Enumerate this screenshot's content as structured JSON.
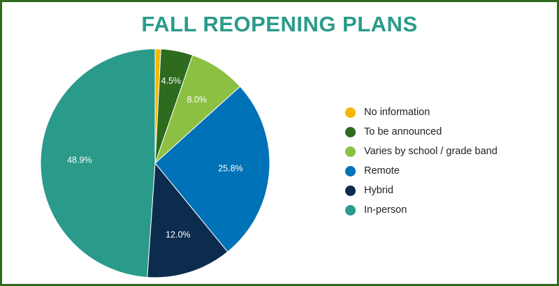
{
  "chart_data": {
    "type": "pie",
    "title": "FALL REOPENING PLANS",
    "slices": [
      {
        "label": "No information",
        "value": 0.8,
        "display": "",
        "color": "#f5b800"
      },
      {
        "label": "To be announced",
        "value": 4.5,
        "display": "4.5%",
        "color": "#2e6b1f"
      },
      {
        "label": "Varies by school / grade band",
        "value": 8.0,
        "display": "8.0%",
        "color": "#8cc043"
      },
      {
        "label": "Remote",
        "value": 25.8,
        "display": "25.8%",
        "color": "#0072b8"
      },
      {
        "label": "Hybrid",
        "value": 12.0,
        "display": "12.0%",
        "color": "#0c2c4e"
      },
      {
        "label": "In-person",
        "value": 48.9,
        "display": "48.9%",
        "color": "#2a9a8a"
      }
    ],
    "legend_position": "right",
    "start_angle": "top, clockwise"
  }
}
